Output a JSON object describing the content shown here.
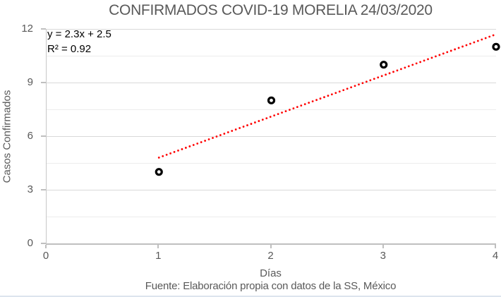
{
  "title": "CONFIRMADOS COVID-19 MORELIA 24/03/2020",
  "annotation": {
    "equation": "y = 2.3x + 2.5",
    "r_squared": "R² = 0.92"
  },
  "axes": {
    "x_title": "Días",
    "y_title": "Casos Confirmados"
  },
  "footer": "Fuente: Elaboración propia con datos de la SS, México",
  "colors": {
    "text_gray": "#595959",
    "annotation_text": "#000000",
    "axis_line": "#BFBFBF",
    "gridline_major": "#D9D9D9",
    "gridline_minor": "#ECECEC",
    "trendline_red": "#FF0000",
    "marker_stroke": "#000000",
    "marker_fill": "#FFFFFF",
    "window_border": "#dde4ee",
    "background": "#FFFFFF"
  },
  "chart_data": {
    "type": "scatter",
    "title": "CONFIRMADOS COVID-19 MORELIA 24/03/2020",
    "xlabel": "Días",
    "ylabel": "Casos Confirmados",
    "points": [
      {
        "x": 1,
        "y": 4
      },
      {
        "x": 2,
        "y": 8
      },
      {
        "x": 3,
        "y": 10
      },
      {
        "x": 4,
        "y": 11
      }
    ],
    "xlim": [
      0,
      4
    ],
    "ylim": [
      0,
      12
    ],
    "x_ticks": [
      0,
      1,
      2,
      3,
      4
    ],
    "y_ticks": [
      0,
      3,
      6,
      9,
      12
    ],
    "y_minor_step": 1.5,
    "grid": "horizontal-only",
    "legend": "none",
    "marker": {
      "shape": "open-circle",
      "color": "#000000"
    },
    "trendline": {
      "type": "linear",
      "slope": 2.3,
      "intercept": 2.5,
      "x_range": [
        1,
        4
      ],
      "style": "dotted",
      "color": "#FF0000",
      "equation": "y = 2.3x + 2.5",
      "r2": "0.92"
    },
    "source_note": "Fuente: Elaboración propia con datos de la SS, México"
  }
}
